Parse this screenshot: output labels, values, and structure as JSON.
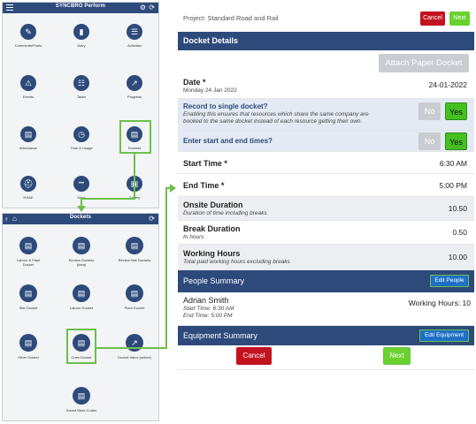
{
  "home": {
    "title": "SYNCBRO Perform",
    "tiles": [
      {
        "label": "Comments/Posts",
        "glyph": "✎"
      },
      {
        "label": "Diary",
        "glyph": "▮"
      },
      {
        "label": "Activities",
        "glyph": "☰"
      },
      {
        "label": "Events",
        "glyph": "⚠"
      },
      {
        "label": "Tasks",
        "glyph": "☷"
      },
      {
        "label": "Progress",
        "glyph": "↗"
      },
      {
        "label": "Attendance",
        "glyph": "▤"
      },
      {
        "label": "Time & Usage",
        "glyph": "◷"
      },
      {
        "label": "Dockets",
        "glyph": "▤"
      },
      {
        "label": "HS&E",
        "glyph": "⛑"
      },
      {
        "label": "More",
        "glyph": "•••"
      },
      {
        "label": "Gallery",
        "glyph": "▣"
      }
    ]
  },
  "dockets_screen": {
    "title": "Dockets",
    "tiles": [
      {
        "label": "Labour & Plant Docket"
      },
      {
        "label": "Review Dockets (beta)"
      },
      {
        "label": "Review Site Dockets"
      },
      {
        "label": "Site Docket"
      },
      {
        "label": "Labour Docket"
      },
      {
        "label": "Plant Docket"
      },
      {
        "label": "Other Docket"
      },
      {
        "label": "Crew Docket"
      },
      {
        "label": "Docket Inbox (online)"
      },
      {
        "label": "Saved Work Codes"
      }
    ]
  },
  "form": {
    "project": "Project: Standard Road and Rail",
    "cancel_label": "Cancel",
    "next_label": "Next",
    "docket_details": "Docket Details",
    "attach_label": "Attach Paper Docket",
    "date_label": "Date *",
    "date_sub": "Monday 24 Jan 2022",
    "date_value": "24-01-2022",
    "single_docket_label": "Record to single docket?",
    "single_docket_desc": "Enabling this ensures that resources which share the same company are booked to the same docket instead of each resource getting their own.",
    "no_label": "No",
    "yes_label": "Yes",
    "start_end_label": "Enter start and end times?",
    "start_label": "Start Time *",
    "start_value": "6:30 AM",
    "end_label": "End Time *",
    "end_value": "5:00 PM",
    "onsite_label": "Onsite Duration",
    "onsite_sub": "Duration of time including breaks",
    "onsite_value": "10.50",
    "break_label": "Break Duration",
    "break_sub": "In hours",
    "break_value": "0.50",
    "work_label": "Working Hours",
    "work_sub": "Total paid working hours excluding breaks",
    "work_value": "10.00",
    "people_summary": "People Summary",
    "edit_people": "Edit People",
    "person_name": "Adrian Smith",
    "person_start": "Start Time: 6:30 AM",
    "person_end": "End Time: 5:00 PM",
    "person_hours": "Working Hours: 10",
    "equipment_summary": "Equipment Summary",
    "edit_equipment": "Edit Equipment"
  },
  "colors": {
    "navy": "#2d4a7b",
    "green": "#6cc04a",
    "red": "#c3131f",
    "next": "#6ad12f"
  }
}
